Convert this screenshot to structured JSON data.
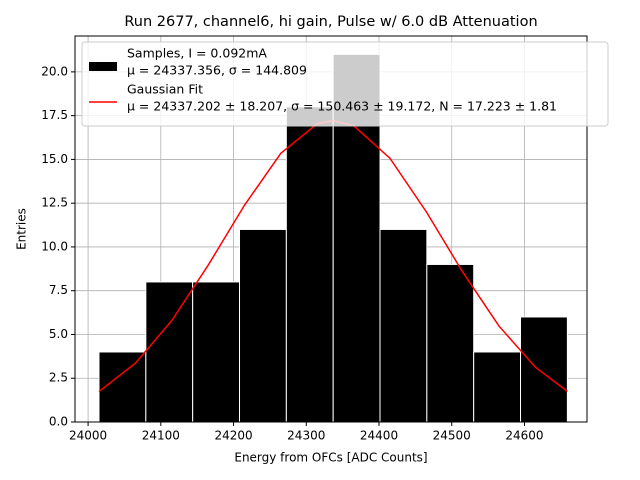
{
  "chart_data": {
    "type": "histogram",
    "title": "Run 2677, channel6, hi gain, Pulse w/ 6.0 dB Attenuation",
    "xlabel": "Energy from OFCs [ADC Counts]",
    "ylabel": "Entries",
    "xlim": [
      23982,
      24686
    ],
    "ylim": [
      0,
      22.05
    ],
    "xticks": [
      24000,
      24100,
      24200,
      24300,
      24400,
      24500,
      24600
    ],
    "yticks": [
      {
        "value": 0,
        "label": "0.0"
      },
      {
        "value": 2.5,
        "label": "2.5"
      },
      {
        "value": 5,
        "label": "5.0"
      },
      {
        "value": 7.5,
        "label": "7.5"
      },
      {
        "value": 10,
        "label": "10.0"
      },
      {
        "value": 12.5,
        "label": "12.5"
      },
      {
        "value": 15,
        "label": "15.0"
      },
      {
        "value": 17.5,
        "label": "17.5"
      },
      {
        "value": 20,
        "label": "20.0"
      }
    ],
    "grid": true,
    "legend": "upper left",
    "series": [
      {
        "type": "histogram",
        "name": "Samples, I = 0.092mA",
        "detail": "μ = 24337.356, σ = 144.809",
        "color": "#000000",
        "edgecolor": "#ffffff",
        "bins": [
          24015,
          24079.4,
          24143.8,
          24208.2,
          24272.6,
          24337,
          24401.4,
          24465.8,
          24530.2,
          24594.6,
          24659
        ],
        "counts": [
          4,
          8,
          8,
          11,
          18,
          21,
          11,
          9,
          4,
          6
        ]
      },
      {
        "type": "line",
        "name": "Gaussian Fit",
        "detail": "μ = 24337.202 ± 18.207, σ = 150.463 ± 19.172, N = 17.223 ± 1.81",
        "color": "#ff0000",
        "x": [
          24015,
          24065,
          24115,
          24165,
          24215,
          24265,
          24315,
          24337,
          24365,
          24415,
          24465,
          24515,
          24565,
          24615,
          24659
        ],
        "values": [
          1.74,
          3.36,
          5.79,
          8.95,
          12.38,
          15.35,
          17.04,
          17.22,
          16.93,
          15.07,
          12.01,
          8.57,
          5.48,
          3.13,
          1.75
        ]
      }
    ]
  }
}
